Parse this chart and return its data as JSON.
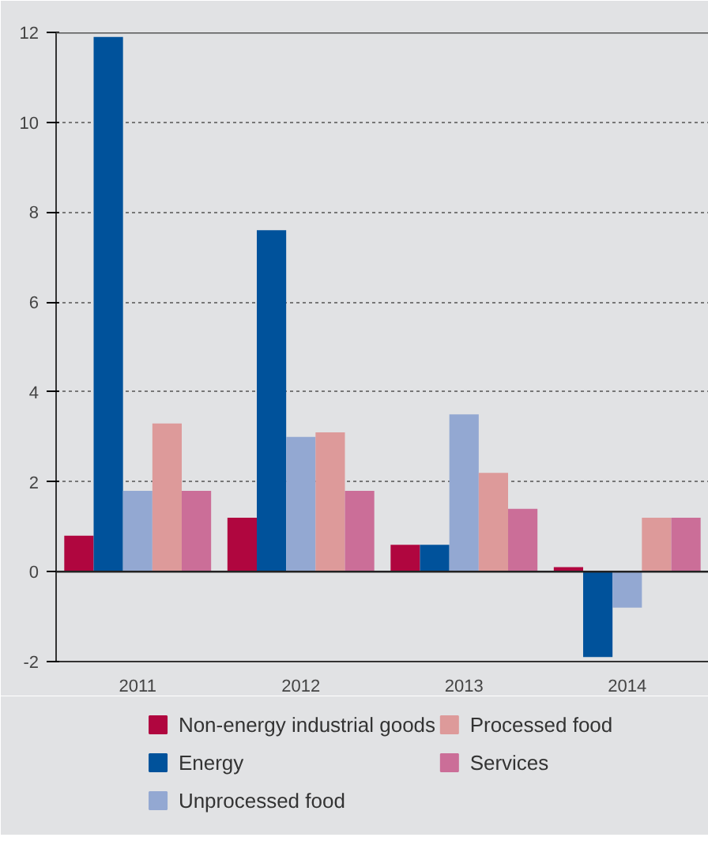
{
  "chart_data": {
    "type": "bar",
    "categories": [
      "2011",
      "2012",
      "2013",
      "2014"
    ],
    "series": [
      {
        "name": "Non-energy industrial goods",
        "color": "#b0063f",
        "values": [
          0.8,
          1.2,
          0.6,
          0.1
        ]
      },
      {
        "name": "Energy",
        "color": "#00529b",
        "values": [
          11.9,
          7.6,
          0.6,
          -1.9
        ]
      },
      {
        "name": "Unprocessed food",
        "color": "#93a8d2",
        "values": [
          1.8,
          3.0,
          3.5,
          -0.8
        ]
      },
      {
        "name": "Processed food",
        "color": "#dd9a9a",
        "values": [
          3.3,
          3.1,
          2.2,
          1.2
        ]
      },
      {
        "name": "Services",
        "color": "#cb6e98",
        "values": [
          1.8,
          1.8,
          1.4,
          1.2
        ]
      }
    ],
    "ylim": [
      -2,
      12
    ],
    "yticks": [
      -2,
      0,
      2,
      4,
      6,
      8,
      10,
      12
    ],
    "grid": "y",
    "legend": "bottom"
  }
}
